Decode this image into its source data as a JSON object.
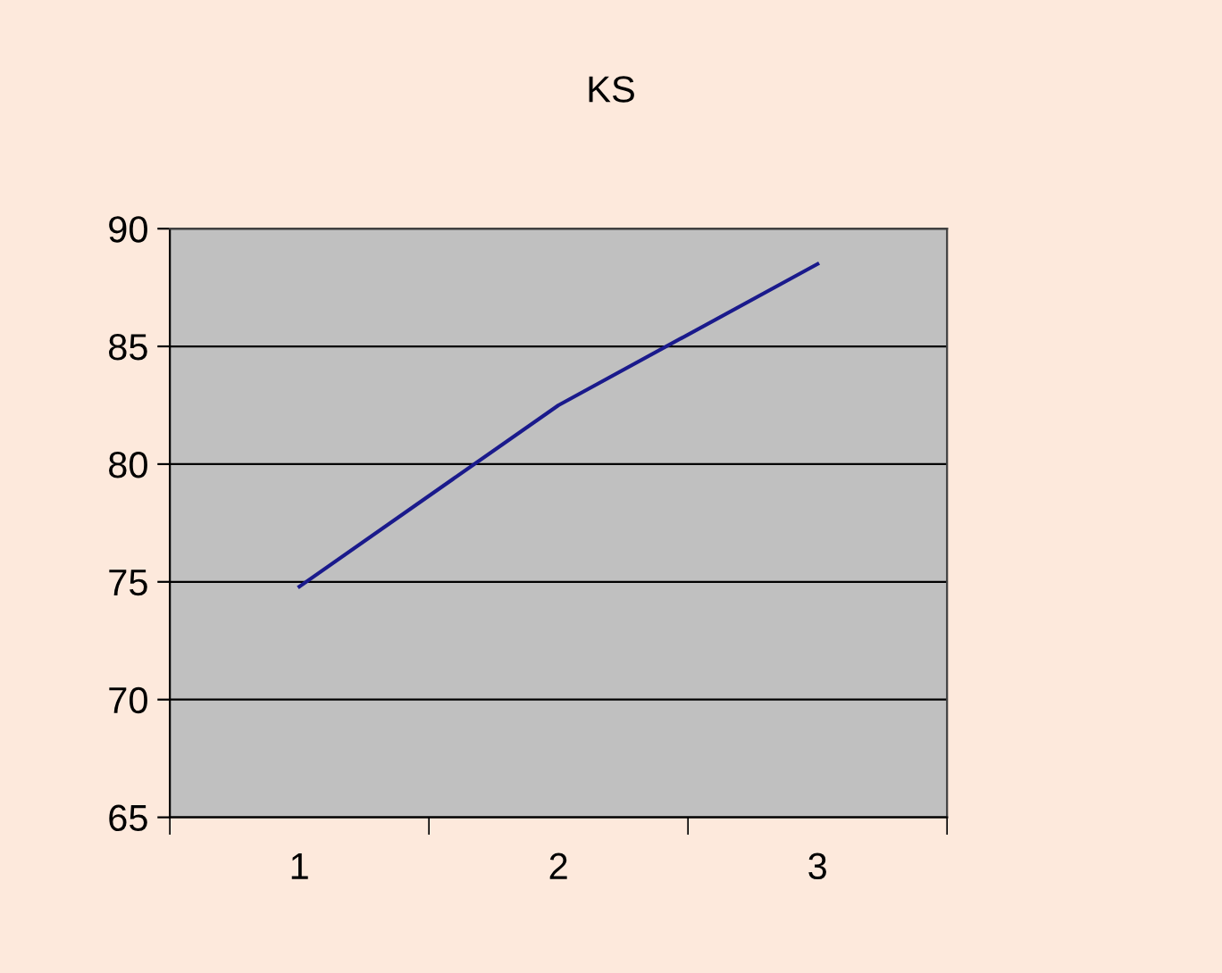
{
  "chart_data": {
    "type": "line",
    "title": "KS",
    "categories": [
      "1",
      "2",
      "3"
    ],
    "series": [
      {
        "color": "#1a1a8c",
        "values": [
          74.8,
          82.5,
          88.5
        ]
      }
    ],
    "ylim": [
      65,
      90
    ],
    "yticks": [
      65,
      70,
      75,
      80,
      85,
      90
    ],
    "grid": "y",
    "legend": false,
    "marker": "none",
    "line_style": "solid"
  }
}
